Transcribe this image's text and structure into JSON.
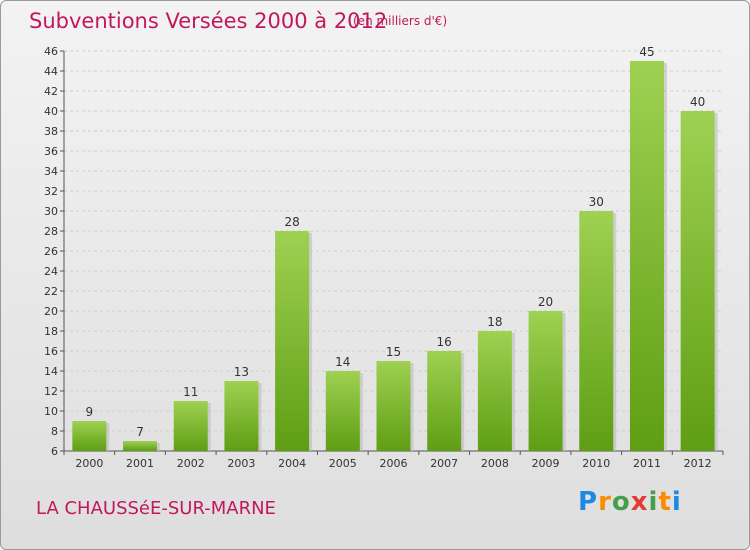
{
  "header": {
    "title": "Subventions Versées 2000 à 2012",
    "subtitle": "(en milliers d'€)"
  },
  "footer": {
    "place": "LA CHAUSSéE-SUR-MARNE",
    "logo": {
      "letters": [
        {
          "char": "P",
          "color": "#1e88e5"
        },
        {
          "char": "r",
          "color": "#fb8c00"
        },
        {
          "char": "o",
          "color": "#43a047"
        },
        {
          "char": "x",
          "color": "#e53935"
        },
        {
          "char": "i",
          "color": "#43a047"
        },
        {
          "char": "t",
          "color": "#fb8c00"
        },
        {
          "char": "i",
          "color": "#1e88e5"
        }
      ]
    }
  },
  "colors": {
    "accent": "#c2185b",
    "bar_light": "#9fd152",
    "bar_dark": "#5e9e14",
    "grid": "#cfcfcf",
    "background_top": "#f3f3f3",
    "background_bottom": "#dedede"
  },
  "chart_data": {
    "type": "bar",
    "title": "Subventions Versées 2000 à 2012",
    "subtitle": "(en milliers d'€)",
    "categories": [
      "2000",
      "2001",
      "2002",
      "2003",
      "2004",
      "2005",
      "2006",
      "2007",
      "2008",
      "2009",
      "2010",
      "2011",
      "2012"
    ],
    "values": [
      9,
      7,
      11,
      13,
      28,
      14,
      15,
      16,
      18,
      20,
      30,
      45,
      40
    ],
    "ylim": [
      6,
      46
    ],
    "ytick_step": 2,
    "grid": true,
    "legend": "none"
  }
}
